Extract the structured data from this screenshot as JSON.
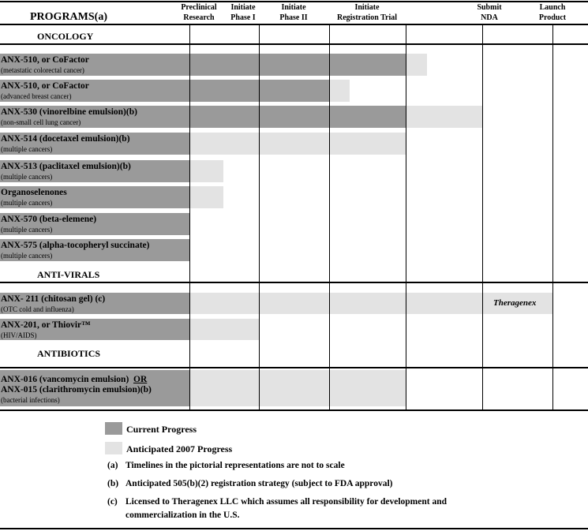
{
  "header": {
    "title": "PROGRAMS(a)",
    "stages": [
      {
        "line1": "Preclinical",
        "line2": "Research"
      },
      {
        "line1": "Initiate",
        "line2": "Phase I"
      },
      {
        "line1": "Initiate",
        "line2": "Phase II"
      },
      {
        "line1": "Initiate",
        "line2": "Registration Trial"
      },
      {
        "line1": "Submit",
        "line2": "NDA"
      },
      {
        "line1": "Launch",
        "line2": "Product"
      }
    ]
  },
  "sections": [
    {
      "title": "ONCOLOGY",
      "programs": [
        {
          "name": "ANX-510, or CoFactor",
          "desc": "(metastatic colorectal cancer)",
          "current_stage": 3.0,
          "anticipated_stage": 3.28
        },
        {
          "name": "ANX-510, or CoFactor",
          "desc": "(advanced breast cancer)",
          "current_stage": 2.0,
          "anticipated_stage": 2.27
        },
        {
          "name": "ANX-530 (vinorelbine emulsion)(b)",
          "desc": "(non-small cell lung cancer)",
          "current_stage": 3.0,
          "anticipated_stage": 4.0
        },
        {
          "name": "ANX-514 (docetaxel emulsion)(b)",
          "desc": "(multiple cancers)",
          "current_stage": 0,
          "anticipated_stage": 3.0
        },
        {
          "name": "ANX-513 (paclitaxel emulsion)(b)",
          "desc": "(multiple cancers)",
          "current_stage": 0,
          "anticipated_stage": 0.49
        },
        {
          "name": "Organoselenones",
          "desc": "(multiple cancers)",
          "current_stage": 0,
          "anticipated_stage": 0.49
        },
        {
          "name": "ANX-570 (beta-elemene)",
          "desc": "(multiple cancers)",
          "current_stage": 0,
          "anticipated_stage": 0
        },
        {
          "name": "ANX-575 (alpha-tocopheryl  succinate)",
          "desc": "(multiple cancers)",
          "current_stage": 0,
          "anticipated_stage": 0
        }
      ]
    },
    {
      "title": "ANTI-VIRALS",
      "programs": [
        {
          "name": "ANX- 211 (chitosan gel) (c)",
          "desc": "(OTC cold and influenza)",
          "current_stage": 0,
          "anticipated_stage": 5.0,
          "partner": "Theragenex"
        },
        {
          "name": "ANX-201, or Thiovir™",
          "desc": "(HIV/AIDS)",
          "current_stage": 0,
          "anticipated_stage": 1.0
        }
      ]
    },
    {
      "title": "ANTIBIOTICS",
      "programs": [
        {
          "name": "ANX-016 (vancomycin emulsion)",
          "name_or": "OR",
          "name2": "ANX-015 (clarithromycin emulsion)(b)",
          "desc": "(bacterial infections)",
          "current_stage": 0,
          "anticipated_stage": 3.0
        }
      ]
    }
  ],
  "legend": {
    "current": "Current Progress",
    "anticipated": "Anticipated 2007 Progress",
    "current_color": "#9a9a9a",
    "anticipated_color": "#e3e3e3"
  },
  "notes": [
    {
      "label": "(a)",
      "text": "Timelines in the pictorial representations are not to scale"
    },
    {
      "label": "(b)",
      "text": "Anticipated 505(b)(2) registration strategy (subject to FDA approval)"
    },
    {
      "label": "(c)",
      "text": "Licensed to Theragenex LLC which assumes all responsibility for development and",
      "text2": "commercialization in the U.S."
    }
  ]
}
